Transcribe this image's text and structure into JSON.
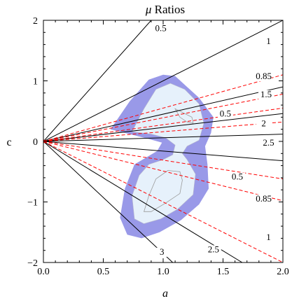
{
  "chart_data": {
    "type": "line",
    "title": "μ Ratios",
    "title_greek": "μ",
    "title_rest": " Ratios",
    "xlabel": "a",
    "ylabel": "c",
    "xlim": [
      0.0,
      2.0
    ],
    "ylim": [
      -2.0,
      2.0
    ],
    "xticks": [
      "0.0",
      "0.5",
      "1.0",
      "1.5",
      "2.0"
    ],
    "yticks": [
      "-2",
      "-1",
      "0",
      "1",
      "2"
    ],
    "grid": false,
    "colors": {
      "solid_line": "#000000",
      "dashed_line": "#ff0000",
      "outer_region": "#9999e8",
      "inner_region": "#e6f1fb",
      "inner_contour": "#9a9a9a"
    },
    "solid_lines": [
      {
        "label": "0.5",
        "end": [
          0.9,
          2.0
        ]
      },
      {
        "label": "1",
        "end": [
          2.0,
          2.0
        ]
      },
      {
        "label": "1.5",
        "end": [
          2.0,
          0.9
        ]
      },
      {
        "label": "2",
        "end": [
          2.0,
          0.46
        ]
      },
      {
        "label": "2.5",
        "end": [
          2.0,
          0.12
        ]
      },
      {
        "label": "",
        "end": [
          2.0,
          -0.32
        ]
      },
      {
        "label": "2.5",
        "end": [
          1.66,
          -2.0
        ]
      },
      {
        "label": "3",
        "end": [
          1.08,
          -2.0
        ]
      }
    ],
    "dashed_lines": [
      {
        "label": "0.85",
        "end": [
          2.0,
          1.1
        ]
      },
      {
        "label": "",
        "end": [
          2.0,
          0.78
        ]
      },
      {
        "label": "0.5",
        "end": [
          2.0,
          0.55
        ]
      },
      {
        "label": "",
        "end": [
          2.0,
          0.32
        ]
      },
      {
        "label": "0.5",
        "end": [
          2.0,
          -0.62
        ]
      },
      {
        "label": "0.85",
        "end": [
          2.0,
          -0.98
        ]
      },
      {
        "label": "1",
        "end": [
          2.0,
          -2.0
        ]
      }
    ],
    "origin": [
      0.0,
      0.0
    ],
    "regions": {
      "outer": [
        [
          0.56,
          0.2
        ],
        [
          0.72,
          0.66
        ],
        [
          0.88,
          1.02
        ],
        [
          1.0,
          1.1
        ],
        [
          1.1,
          1.08
        ],
        [
          1.2,
          0.9
        ],
        [
          1.3,
          0.72
        ],
        [
          1.42,
          0.4
        ],
        [
          1.4,
          0.14
        ],
        [
          1.35,
          -0.08
        ],
        [
          1.37,
          -0.38
        ],
        [
          1.38,
          -0.78
        ],
        [
          1.3,
          -1.04
        ],
        [
          1.15,
          -1.3
        ],
        [
          0.97,
          -1.5
        ],
        [
          0.82,
          -1.6
        ],
        [
          0.7,
          -1.54
        ],
        [
          0.64,
          -1.26
        ],
        [
          0.68,
          -0.78
        ],
        [
          0.76,
          -0.38
        ],
        [
          0.95,
          -0.16
        ],
        [
          0.99,
          -0.02
        ],
        [
          0.88,
          0.04
        ],
        [
          0.72,
          0.12
        ]
      ],
      "inner": [
        [
          0.74,
          0.16
        ],
        [
          0.84,
          0.54
        ],
        [
          0.94,
          0.86
        ],
        [
          1.06,
          0.96
        ],
        [
          1.18,
          0.86
        ],
        [
          1.3,
          0.62
        ],
        [
          1.34,
          0.3
        ],
        [
          1.3,
          0.02
        ],
        [
          1.2,
          -0.08
        ],
        [
          1.16,
          -0.2
        ],
        [
          1.2,
          -0.3
        ],
        [
          1.27,
          -0.54
        ],
        [
          1.25,
          -0.88
        ],
        [
          1.12,
          -1.12
        ],
        [
          0.98,
          -1.28
        ],
        [
          0.84,
          -1.36
        ],
        [
          0.76,
          -1.28
        ],
        [
          0.74,
          -0.9
        ],
        [
          0.8,
          -0.56
        ],
        [
          0.88,
          -0.38
        ],
        [
          1.0,
          -0.3
        ],
        [
          1.08,
          -0.22
        ],
        [
          1.1,
          -0.06
        ],
        [
          1.02,
          0.06
        ],
        [
          0.9,
          0.12
        ]
      ],
      "inner_contour_top": [
        [
          1.1,
          0.54
        ],
        [
          1.16,
          0.48
        ],
        [
          1.24,
          0.4
        ],
        [
          1.25,
          0.3
        ],
        [
          1.2,
          0.32
        ],
        [
          1.14,
          0.4
        ]
      ],
      "inner_contour_bottom": [
        [
          0.84,
          -1.16
        ],
        [
          0.88,
          -0.9
        ],
        [
          0.94,
          -0.62
        ],
        [
          1.04,
          -0.48
        ],
        [
          1.14,
          -0.5
        ],
        [
          1.16,
          -0.64
        ],
        [
          1.14,
          -0.86
        ],
        [
          1.02,
          -1.02
        ],
        [
          0.9,
          -1.16
        ]
      ]
    }
  }
}
